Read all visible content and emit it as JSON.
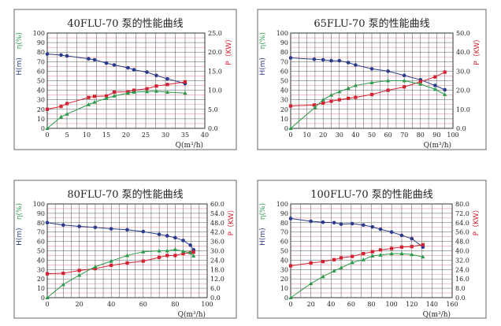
{
  "colors": {
    "H": "#2b3a8c",
    "P": "#d42030",
    "eta": "#2a9a4a",
    "grid": "#555555",
    "grid_minor": "#e89aa0"
  },
  "chart_data": [
    {
      "type": "line",
      "title": "40FLU-70 泵的性能曲线",
      "xlabel": "Q(m³/h)",
      "ylabel_left_H": "H(m)",
      "ylabel_left_eta": "η(%)",
      "ylabel_right": "P（KW）",
      "xlim": [
        0,
        40
      ],
      "xticks": [
        0,
        5,
        10,
        15,
        20,
        25,
        30,
        35,
        40
      ],
      "x_minor_step": 2.5,
      "ylim_left": [
        0,
        100
      ],
      "yticks_left": [
        0,
        10,
        20,
        30,
        40,
        50,
        60,
        70,
        80,
        90,
        100
      ],
      "ylim_right": [
        0,
        25
      ],
      "yticks_right": [
        "0.0",
        "5.0",
        "10.0",
        "15.0",
        "20.0",
        "25.0"
      ],
      "grid": true,
      "series": [
        {
          "key": "H",
          "axis": "left",
          "marker": "circle",
          "x": [
            0,
            3.5,
            5,
            10.5,
            12,
            15,
            17,
            20.5,
            22,
            25.3,
            27.7,
            30.5,
            35
          ],
          "y": [
            78,
            77,
            76,
            73,
            72,
            68.5,
            66.5,
            63.5,
            61.5,
            59,
            55.5,
            52,
            47
          ]
        },
        {
          "key": "P",
          "axis": "right",
          "marker": "square",
          "x": [
            0,
            3.5,
            5,
            10.5,
            12,
            15,
            17,
            20.5,
            22,
            25.3,
            27.7,
            30.5,
            35
          ],
          "y": [
            5.0,
            5.75,
            6.5,
            8.1,
            8.4,
            8.5,
            9.5,
            9.6,
            10.0,
            10.4,
            11.1,
            11.5,
            12.2
          ]
        },
        {
          "key": "eta",
          "axis": "left",
          "marker": "triangle",
          "x": [
            0,
            3.5,
            5,
            10.5,
            12,
            15,
            17,
            20.5,
            22,
            25.3,
            27.7,
            30.5,
            35
          ],
          "y": [
            0,
            12,
            15,
            25,
            27.5,
            31.5,
            34,
            37,
            38,
            38.5,
            39,
            38,
            37
          ]
        }
      ]
    },
    {
      "type": "line",
      "title": "65FLU-70 泵的性能曲线",
      "xlabel": "Q(m³/h)",
      "ylabel_left_H": "H(m)",
      "ylabel_left_eta": "η(%)",
      "ylabel_right": "P（KW）",
      "xlim": [
        0,
        100
      ],
      "xticks": [
        0,
        10,
        20,
        30,
        40,
        50,
        60,
        70,
        80,
        90,
        100
      ],
      "x_minor_step": 5,
      "ylim_left": [
        0,
        100
      ],
      "yticks_left": [
        0,
        10,
        20,
        30,
        40,
        50,
        60,
        70,
        80,
        90,
        100
      ],
      "ylim_right": [
        0,
        50
      ],
      "yticks_right": [
        "0.0",
        "10.0",
        "20.0",
        "30.0",
        "40.0",
        "50.0"
      ],
      "grid": true,
      "series": [
        {
          "key": "H",
          "axis": "left",
          "marker": "circle",
          "x": [
            0,
            14.5,
            20,
            25,
            30,
            35.5,
            40,
            50,
            60,
            70,
            80,
            89,
            95
          ],
          "y": [
            74,
            72.5,
            72,
            71,
            71,
            69,
            66.5,
            62.5,
            60,
            55.5,
            51,
            45,
            40.5
          ]
        },
        {
          "key": "P",
          "axis": "right",
          "marker": "square",
          "x": [
            0,
            14.5,
            20,
            25,
            30,
            35.5,
            40,
            50,
            60,
            70,
            80,
            89,
            95
          ],
          "y": [
            11.75,
            12.25,
            13.25,
            14.25,
            15,
            15.75,
            16.25,
            17.75,
            20,
            21.75,
            24.5,
            27,
            29.5
          ]
        },
        {
          "key": "eta",
          "axis": "left",
          "marker": "triangle",
          "x": [
            0,
            15,
            20,
            25,
            30,
            35.5,
            40,
            50,
            60,
            70,
            80,
            89,
            95
          ],
          "y": [
            0,
            22,
            30,
            35,
            38.5,
            42,
            45,
            48,
            50,
            50,
            46.5,
            41,
            35.5
          ]
        }
      ]
    },
    {
      "type": "line",
      "title": "80FLU-70 泵的性能曲线",
      "xlabel": "Q(m³/h)",
      "ylabel_left_H": "H(m)",
      "ylabel_left_eta": "η(%)",
      "ylabel_right": "P（KW）",
      "xlim": [
        0,
        100
      ],
      "xticks": [
        0,
        20,
        40,
        60,
        80,
        100
      ],
      "x_minor_step": 5,
      "ylim_left": [
        0,
        100
      ],
      "yticks_left": [
        0,
        10,
        20,
        30,
        40,
        50,
        60,
        70,
        80,
        90,
        100
      ],
      "ylim_right": [
        0,
        60
      ],
      "yticks_right": [
        "0.0",
        "6.0",
        "12.0",
        "18.0",
        "24.0",
        "30.0",
        "36.0",
        "42.0",
        "48.0",
        "54.0",
        "60.0"
      ],
      "grid": true,
      "series": [
        {
          "key": "H",
          "axis": "left",
          "marker": "circle",
          "x": [
            0,
            10,
            20,
            30,
            40,
            50,
            60,
            70,
            75,
            80,
            85,
            89.5,
            91.5
          ],
          "y": [
            80,
            77.5,
            76,
            75,
            73.5,
            72.5,
            70.5,
            67.5,
            66,
            64,
            61,
            56,
            51
          ]
        },
        {
          "key": "P",
          "axis": "right",
          "marker": "square",
          "x": [
            0,
            10,
            20,
            30,
            40,
            50,
            60,
            70,
            75,
            80,
            85,
            89.5,
            91.5
          ],
          "y": [
            15.3,
            15.6,
            17.4,
            18.6,
            20.7,
            22.2,
            23.4,
            25.8,
            27,
            27,
            28.2,
            28.8,
            29.1
          ]
        },
        {
          "key": "eta",
          "axis": "left",
          "marker": "triangle",
          "x": [
            0,
            10,
            20,
            30,
            40,
            50,
            60,
            70,
            75,
            80,
            85,
            89.5,
            91.5
          ],
          "y": [
            0,
            14,
            24,
            33,
            39,
            45,
            49,
            50,
            50,
            51.5,
            49.5,
            48,
            44.5
          ]
        }
      ]
    },
    {
      "type": "line",
      "title": "100FLU-70 泵的性能曲线",
      "xlabel": "Q(m³/h)",
      "ylabel_left_H": "H(m)",
      "ylabel_left_eta": "η(%)",
      "ylabel_right": "P（KW）",
      "xlim": [
        0,
        160
      ],
      "xticks": [
        0,
        20,
        40,
        60,
        80,
        100,
        120,
        140,
        160
      ],
      "x_minor_step": 10,
      "ylim_left": [
        0,
        100
      ],
      "yticks_left": [
        0,
        10,
        20,
        30,
        40,
        50,
        60,
        70,
        80,
        90,
        100
      ],
      "ylim_right": [
        0,
        80
      ],
      "yticks_right": [
        "0.0",
        "8.0",
        "16.0",
        "24.0",
        "32.0",
        "40.0",
        "48.0",
        "56.0",
        "64.0",
        "72.0",
        "80.0"
      ],
      "grid": true,
      "series": [
        {
          "key": "H",
          "axis": "left",
          "marker": "circle",
          "x": [
            0,
            20,
            32,
            43,
            50,
            61,
            72,
            81,
            89,
            100,
            110,
            120,
            131
          ],
          "y": [
            84.5,
            81.5,
            80.5,
            80,
            78.5,
            79,
            77.5,
            75.5,
            73,
            70,
            66.5,
            63,
            54
          ]
        },
        {
          "key": "P",
          "axis": "right",
          "marker": "square",
          "x": [
            0,
            20,
            32,
            43,
            50,
            61,
            72,
            81,
            89,
            100,
            110,
            120,
            131
          ],
          "y": [
            27.2,
            29.6,
            30.8,
            32.4,
            34,
            35.2,
            37.6,
            39.2,
            40.8,
            42,
            43.2,
            43.6,
            45.2
          ]
        },
        {
          "key": "eta",
          "axis": "left",
          "marker": "triangle",
          "x": [
            0,
            20,
            32,
            43,
            50,
            61,
            72,
            81,
            89,
            100,
            110,
            120,
            131
          ],
          "y": [
            0,
            15,
            22.5,
            28.5,
            32,
            37.5,
            40.5,
            44.5,
            45.5,
            47,
            47,
            46,
            43.5
          ]
        }
      ]
    }
  ]
}
